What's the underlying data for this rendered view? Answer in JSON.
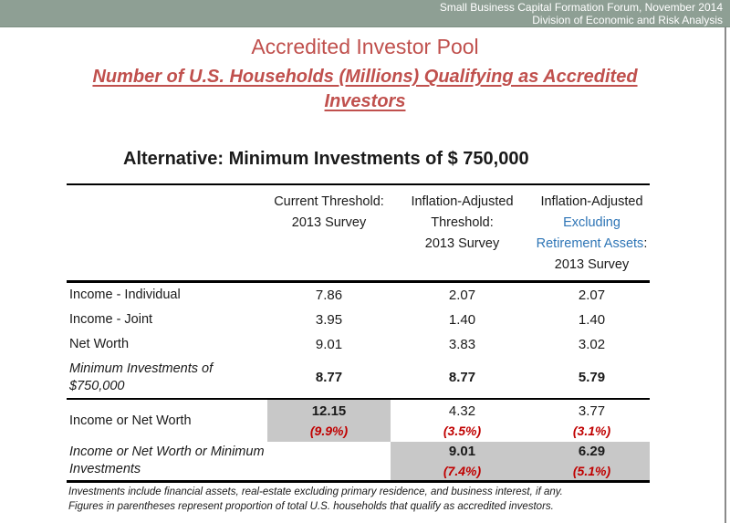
{
  "header_bar": {
    "line1": "Small Business Capital Formation Forum, November 2014",
    "line2": "Division of Economic and Risk Analysis"
  },
  "titles": {
    "main": "Accredited Investor Pool",
    "subtitle_lines": [
      "Number of U.S. Households (Millions) Qualifying as Accredited",
      "Investors"
    ],
    "section": "Alternative: Minimum Investments of $ 750,000"
  },
  "table": {
    "header_columns": [
      {
        "lines": [
          {
            "text": "Current Threshold:"
          },
          {
            "text": "2013 Survey"
          }
        ]
      },
      {
        "lines": [
          {
            "text": "Inflation-Adjusted"
          },
          {
            "text": "Threshold:"
          },
          {
            "text": "2013 Survey"
          }
        ]
      },
      {
        "lines": [
          {
            "text": "Inflation-Adjusted"
          },
          {
            "text": "Excluding",
            "blue": true
          },
          {
            "text": "Retirement Assets",
            "blue": true,
            "suffix": ":"
          },
          {
            "text": "2013 Survey"
          }
        ]
      }
    ],
    "rows": [
      {
        "label": "Income - Individual",
        "cells": [
          {
            "value": "7.86"
          },
          {
            "value": "2.07"
          },
          {
            "value": "2.07"
          }
        ]
      },
      {
        "label": "Income - Joint",
        "cells": [
          {
            "value": "3.95"
          },
          {
            "value": "1.40"
          },
          {
            "value": "1.40"
          }
        ]
      },
      {
        "label": "Net Worth",
        "cells": [
          {
            "value": "9.01"
          },
          {
            "value": "3.83"
          },
          {
            "value": "3.02"
          }
        ]
      },
      {
        "label": "Minimum Investments of $750,000",
        "label_italic": true,
        "cells": [
          {
            "value": "8.77",
            "bold": true
          },
          {
            "value": "8.77",
            "bold": true
          },
          {
            "value": "5.79",
            "bold": true
          }
        ]
      },
      {
        "label": "Income or Net Worth",
        "cells": [
          {
            "value": "12.15",
            "pct": "(9.9%)",
            "bold": true,
            "highlight": true
          },
          {
            "value": "4.32",
            "pct": "(3.5%)"
          },
          {
            "value": "3.77",
            "pct": "(3.1%)"
          }
        ]
      },
      {
        "label": "Income or Net Worth or Minimum Investments",
        "label_italic": true,
        "cells": [
          {},
          {
            "value": "9.01",
            "pct": "(7.4%)",
            "bold": true,
            "highlight": true
          },
          {
            "value": "6.29",
            "pct": "(5.1%)",
            "bold": true,
            "highlight": true
          }
        ]
      }
    ]
  },
  "footnotes": {
    "line1": "Investments include financial assets, real-estate excluding primary residence, and business interest, if any.",
    "line2": "Figures in parentheses represent proportion of total U.S. households that qualify as accredited investors."
  },
  "colors": {
    "top_bar_bg": "#8e9f94",
    "accent_red": "#c0504d",
    "blue_text": "#2e75b6",
    "pct_red": "#c00000",
    "highlight_gray": "#c8c8c8"
  }
}
